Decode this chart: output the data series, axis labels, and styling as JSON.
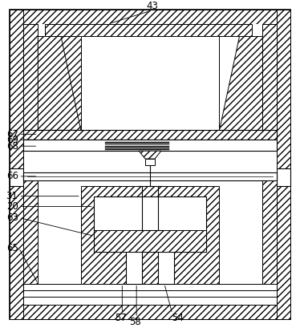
{
  "bg_color": "#ffffff",
  "line_color": "#000000",
  "outer_lw": 1.2,
  "inner_lw": 0.8,
  "hatch": "////",
  "labels": [
    "43",
    "67",
    "69",
    "68",
    "66",
    "31",
    "20",
    "63",
    "65",
    "57",
    "58",
    "54"
  ]
}
